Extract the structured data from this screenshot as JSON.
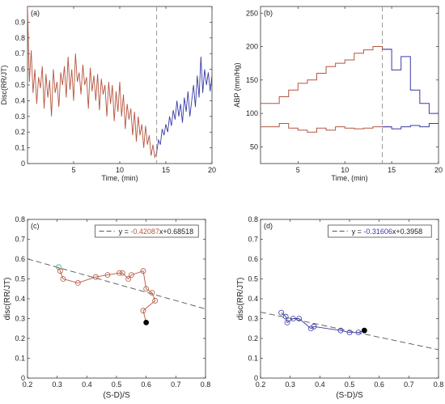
{
  "chart_data": [
    {
      "id": "a",
      "type": "line",
      "panel_label": "(a)",
      "xlabel": "Time, (min)",
      "ylabel": "Disc(RR/JT)",
      "xlim": [
        0,
        20
      ],
      "ylim": [
        0,
        1
      ],
      "xticks": [
        5,
        10,
        15,
        20
      ],
      "yticks": [
        0,
        0.1,
        0.2,
        0.3,
        0.4,
        0.5,
        0.6,
        0.7,
        0.8,
        0.9
      ],
      "vline_x": 14,
      "series": [
        {
          "color": "#b5553f",
          "x": [
            0,
            0.2,
            0.4,
            0.6,
            0.8,
            1.0,
            1.2,
            1.4,
            1.6,
            1.8,
            2.0,
            2.2,
            2.4,
            2.6,
            2.8,
            3.0,
            3.2,
            3.4,
            3.6,
            3.8,
            4.0,
            4.2,
            4.4,
            4.6,
            4.8,
            5.0,
            5.2,
            5.4,
            5.6,
            5.8,
            6.0,
            6.2,
            6.4,
            6.6,
            6.8,
            7.0,
            7.2,
            7.4,
            7.6,
            7.8,
            8.0,
            8.2,
            8.4,
            8.6,
            8.8,
            9.0,
            9.2,
            9.4,
            9.6,
            9.8,
            10.0,
            10.2,
            10.4,
            10.6,
            10.8,
            11.0,
            11.2,
            11.4,
            11.6,
            11.8,
            12.0,
            12.2,
            12.4,
            12.6,
            12.8,
            13.0,
            13.2,
            13.4,
            13.6,
            13.8,
            14.0
          ],
          "y": [
            1.0,
            0.52,
            0.72,
            0.45,
            0.6,
            0.38,
            0.55,
            0.48,
            0.62,
            0.35,
            0.57,
            0.42,
            0.53,
            0.3,
            0.6,
            0.45,
            0.52,
            0.36,
            0.58,
            0.5,
            0.62,
            0.42,
            0.68,
            0.47,
            0.6,
            0.4,
            0.7,
            0.52,
            0.58,
            0.44,
            0.63,
            0.5,
            0.55,
            0.35,
            0.61,
            0.46,
            0.56,
            0.4,
            0.57,
            0.34,
            0.54,
            0.44,
            0.5,
            0.3,
            0.52,
            0.38,
            0.5,
            0.27,
            0.46,
            0.33,
            0.52,
            0.3,
            0.44,
            0.22,
            0.38,
            0.28,
            0.35,
            0.18,
            0.33,
            0.14,
            0.3,
            0.18,
            0.25,
            0.1,
            0.24,
            0.12,
            0.18,
            0.05,
            0.12,
            0.04,
            0.07
          ]
        },
        {
          "color": "#3a3aa8",
          "x": [
            14.0,
            14.2,
            14.4,
            14.6,
            14.8,
            15.0,
            15.2,
            15.4,
            15.6,
            15.8,
            16.0,
            16.2,
            16.4,
            16.6,
            16.8,
            17.0,
            17.2,
            17.4,
            17.6,
            17.8,
            18.0,
            18.2,
            18.4,
            18.6,
            18.8,
            19.0,
            19.2,
            19.4,
            19.6,
            19.8,
            20.0
          ],
          "y": [
            0.07,
            0.15,
            0.12,
            0.22,
            0.18,
            0.25,
            0.2,
            0.3,
            0.24,
            0.34,
            0.28,
            0.4,
            0.3,
            0.38,
            0.26,
            0.42,
            0.33,
            0.46,
            0.3,
            0.4,
            0.5,
            0.36,
            0.56,
            0.42,
            0.68,
            0.45,
            0.6,
            0.5,
            0.58,
            0.46,
            0.56
          ]
        }
      ]
    },
    {
      "id": "b",
      "type": "line",
      "panel_label": "(b)",
      "xlabel": "Time, (min)",
      "ylabel": "ABP (mm/Hg)",
      "xlim": [
        1,
        20
      ],
      "ylim": [
        25,
        260
      ],
      "xticks": [
        5,
        10,
        15,
        20
      ],
      "yticks": [
        50,
        100,
        150,
        200,
        250
      ],
      "vline_x": 14,
      "series": [
        {
          "color": "#b5553f",
          "step": true,
          "x": [
            1,
            2,
            3,
            4,
            5,
            6,
            7,
            8,
            9,
            10,
            11,
            12,
            13,
            14
          ],
          "y": [
            115,
            115,
            125,
            135,
            145,
            150,
            160,
            170,
            175,
            180,
            190,
            195,
            200,
            196
          ]
        },
        {
          "color": "#3a3aa8",
          "step": true,
          "x": [
            14,
            15,
            16,
            17,
            18,
            19,
            20
          ],
          "y": [
            196,
            165,
            185,
            135,
            115,
            100,
            100
          ]
        },
        {
          "color": "#b5553f",
          "step": true,
          "x": [
            1,
            2,
            3,
            4,
            5,
            6,
            7,
            8,
            9,
            10,
            11,
            12,
            13,
            14
          ],
          "y": [
            80,
            80,
            85,
            78,
            75,
            72,
            78,
            75,
            80,
            78,
            77,
            78,
            80,
            80
          ]
        },
        {
          "color": "#3a3aa8",
          "step": true,
          "x": [
            14,
            15,
            16,
            17,
            18,
            19,
            20
          ],
          "y": [
            80,
            77,
            80,
            82,
            80,
            85,
            85
          ]
        }
      ]
    },
    {
      "id": "c",
      "type": "scatter",
      "panel_label": "(c)",
      "xlabel": "(S-D)/S",
      "ylabel": "disc(RR/JT)",
      "xlim": [
        0.2,
        0.8
      ],
      "ylim": [
        0,
        0.8
      ],
      "xticks": [
        0.2,
        0.3,
        0.4,
        0.5,
        0.6,
        0.7,
        0.8
      ],
      "yticks": [
        0,
        0.1,
        0.2,
        0.3,
        0.4,
        0.5,
        0.6,
        0.7,
        0.8
      ],
      "legend": {
        "prefix": "y = ",
        "slope": "-0.42087",
        "rest": "x+0.68518",
        "slope_color": "#b5553f"
      },
      "fit": {
        "slope": -0.42087,
        "intercept": 0.68518
      },
      "line_color": "#b5553f",
      "points": {
        "x": [
          0.305,
          0.31,
          0.32,
          0.37,
          0.43,
          0.47,
          0.51,
          0.52,
          0.54,
          0.55,
          0.59,
          0.6,
          0.62,
          0.63,
          0.59,
          0.6
        ],
        "y": [
          0.56,
          0.54,
          0.5,
          0.48,
          0.51,
          0.52,
          0.53,
          0.53,
          0.5,
          0.52,
          0.54,
          0.45,
          0.43,
          0.39,
          0.34,
          0.28
        ]
      },
      "start_color": "#2db37a",
      "end_color": "#000000"
    },
    {
      "id": "d",
      "type": "scatter",
      "panel_label": "(d)",
      "xlabel": "(S-D)/S",
      "ylabel": "disc(RR/JT)",
      "xlim": [
        0.2,
        0.8
      ],
      "ylim": [
        0,
        0.8
      ],
      "xticks": [
        0.2,
        0.3,
        0.4,
        0.5,
        0.6,
        0.7,
        0.8
      ],
      "yticks": [
        0,
        0.1,
        0.2,
        0.3,
        0.4,
        0.5,
        0.6,
        0.7,
        0.8
      ],
      "legend": {
        "prefix": "y = ",
        "slope": "-0.31606",
        "rest": "x+0.3958",
        "slope_color": "#3a3aa8"
      },
      "fit": {
        "slope": -0.31606,
        "intercept": 0.3958
      },
      "line_color": "#3a3aa8",
      "points": {
        "x": [
          0.27,
          0.285,
          0.29,
          0.31,
          0.33,
          0.37,
          0.38,
          0.47,
          0.5,
          0.53,
          0.55
        ],
        "y": [
          0.33,
          0.31,
          0.28,
          0.3,
          0.3,
          0.25,
          0.26,
          0.24,
          0.23,
          0.23,
          0.24
        ]
      },
      "start_color": "#3a3aa8",
      "end_color": "#000000"
    }
  ]
}
